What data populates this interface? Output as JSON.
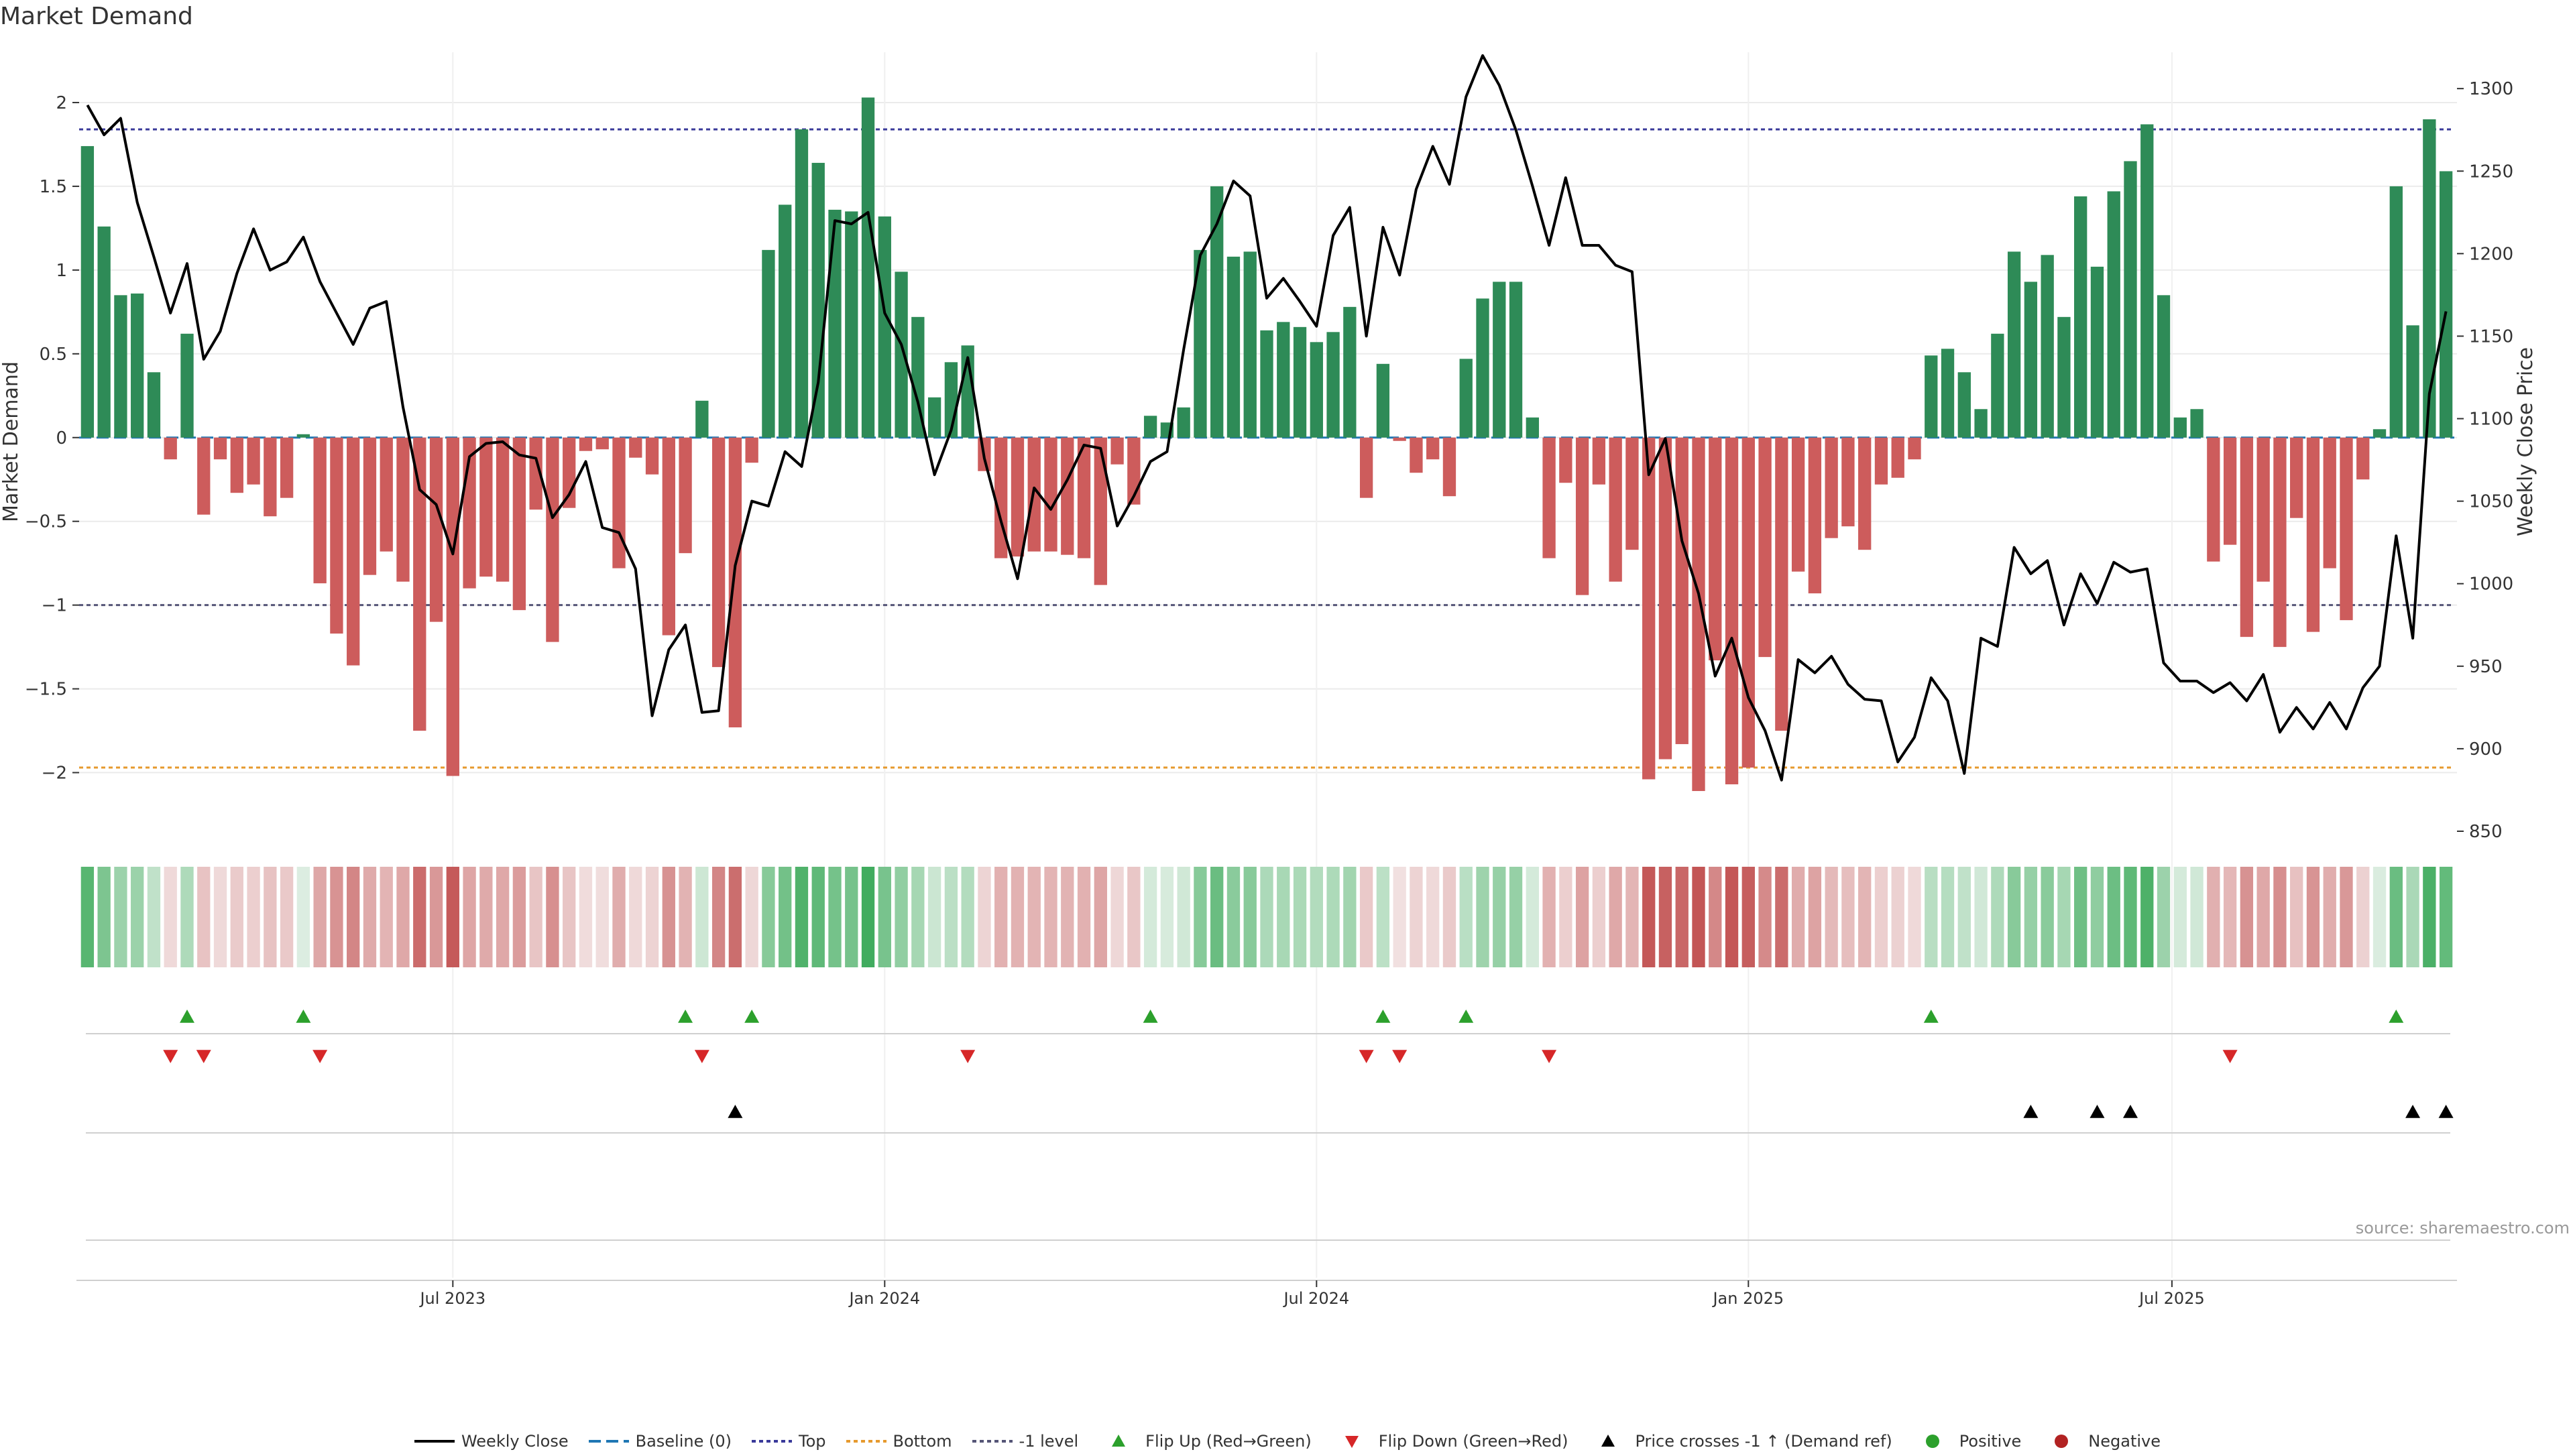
{
  "page": {
    "title": "Market Demand",
    "source": "source: sharemaestro.com"
  },
  "colors": {
    "positive": "#2e8b57",
    "negative": "#cd5c5c",
    "price": "#000000",
    "baseline": "#1f77b4",
    "top": "#3a3a9a",
    "bottom": "#e69a2e",
    "minus1": "#555577",
    "flip_up": "#2ca02c",
    "flip_down": "#d62728",
    "cross": "#000000",
    "pos_dot": "#2ca02c",
    "neg_dot": "#b22222"
  },
  "chart_data": {
    "type": "bar",
    "title": "Market Demand",
    "x_labels": [
      "Jul 2023",
      "Jan 2024",
      "Jul 2024",
      "Jan 2025",
      "Jul 2025"
    ],
    "x_label_weeks": [
      22,
      48,
      74,
      100,
      125.5
    ],
    "y_left": {
      "label": "Market Demand",
      "range": [
        -2.35,
        2.3
      ],
      "ticks": [
        -2,
        -1.5,
        -1,
        -0.5,
        0,
        0.5,
        1,
        1.5,
        2
      ]
    },
    "y_right": {
      "label": "Weekly Close Price",
      "range": [
        850,
        1322
      ],
      "ticks": [
        850,
        900,
        950,
        1000,
        1050,
        1100,
        1150,
        1200,
        1250,
        1300
      ]
    },
    "levels": {
      "baseline": 0,
      "top": 1.84,
      "bottom": -1.97,
      "minus_one": -1
    },
    "demand": [
      1.74,
      1.26,
      0.85,
      0.86,
      0.39,
      -0.13,
      0.62,
      -0.46,
      -0.13,
      -0.33,
      -0.28,
      -0.47,
      -0.36,
      0.02,
      -0.87,
      -1.17,
      -1.36,
      -0.82,
      -0.68,
      -0.86,
      -1.75,
      -1.1,
      -2.02,
      -0.9,
      -0.83,
      -0.86,
      -1.03,
      -0.43,
      -1.22,
      -0.42,
      -0.08,
      -0.07,
      -0.78,
      -0.12,
      -0.22,
      -1.18,
      -0.69,
      0.22,
      -1.37,
      -1.73,
      -0.15,
      1.12,
      1.39,
      1.84,
      1.64,
      1.36,
      1.35,
      2.03,
      1.32,
      0.99,
      0.72,
      0.24,
      0.45,
      0.55,
      -0.2,
      -0.72,
      -0.71,
      -0.68,
      -0.68,
      -0.7,
      -0.72,
      -0.88,
      -0.16,
      -0.4,
      0.13,
      0.09,
      0.18,
      1.12,
      1.5,
      1.08,
      1.11,
      0.64,
      0.69,
      0.66,
      0.57,
      0.63,
      0.78,
      -0.36,
      0.44,
      -0.02,
      -0.21,
      -0.13,
      -0.35,
      0.47,
      0.83,
      0.93,
      0.93,
      0.12,
      -0.72,
      -0.27,
      -0.94,
      -0.28,
      -0.86,
      -0.67,
      -2.04,
      -1.92,
      -1.83,
      -2.11,
      -1.33,
      -2.07,
      -1.97,
      -1.31,
      -1.75,
      -0.8,
      -0.93,
      -0.6,
      -0.53,
      -0.67,
      -0.28,
      -0.24,
      -0.13,
      0.49,
      0.53,
      0.39,
      0.17,
      0.62,
      1.11,
      0.93,
      1.09,
      0.72,
      1.44,
      1.02,
      1.47,
      1.65,
      1.87,
      0.85,
      0.12,
      0.17,
      -0.74,
      -0.64,
      -1.19,
      -0.86,
      -1.25,
      -0.48,
      -1.16,
      -0.78,
      -1.09,
      -0.25,
      0.05,
      1.5,
      0.67,
      1.9,
      1.59
    ],
    "close": [
      1290,
      1272,
      1282,
      1231,
      1198,
      1164,
      1194,
      1136,
      1153,
      1188,
      1215,
      1190,
      1195,
      1210,
      1183,
      1164,
      1145,
      1167,
      1171,
      1107,
      1057,
      1048,
      1018,
      1077,
      1085,
      1086,
      1078,
      1076,
      1040,
      1054,
      1074,
      1034,
      1031,
      1009,
      920,
      960,
      975,
      922,
      923,
      1011,
      1050,
      1047,
      1080,
      1071,
      1122,
      1220,
      1218,
      1225,
      1164,
      1145,
      1110,
      1066,
      1093,
      1137,
      1076,
      1038,
      1003,
      1058,
      1045,
      1063,
      1084,
      1082,
      1035,
      1053,
      1074,
      1080,
      1142,
      1199,
      1218,
      1244,
      1235,
      1173,
      1185,
      1171,
      1156,
      1211,
      1228,
      1150,
      1216,
      1187,
      1239,
      1265,
      1242,
      1295,
      1320,
      1302,
      1275,
      1241,
      1205,
      1246,
      1205,
      1205,
      1193,
      1189,
      1066,
      1088,
      1026,
      994,
      944,
      967,
      931,
      911,
      881,
      954,
      946,
      956,
      939,
      930,
      929,
      892,
      907,
      943,
      929,
      885,
      967,
      962,
      1022,
      1006,
      1014,
      975,
      1006,
      988,
      1013,
      1007,
      1009,
      952,
      941,
      941,
      934,
      940,
      929,
      945,
      910,
      925,
      912,
      928,
      912,
      937,
      950,
      1029,
      967,
      1115,
      1165
    ],
    "flip_up": [
      6,
      13,
      36,
      40,
      64,
      78,
      83,
      111,
      139
    ],
    "flip_down": [
      5,
      7,
      14,
      37,
      53,
      77,
      79,
      88,
      129
    ],
    "price_cross_up": [
      39,
      117,
      121,
      123,
      140,
      142
    ],
    "legend": [
      {
        "key": "weekly_close",
        "label": "Weekly Close"
      },
      {
        "key": "baseline",
        "label": "Baseline (0)"
      },
      {
        "key": "top",
        "label": "Top"
      },
      {
        "key": "bottom",
        "label": "Bottom"
      },
      {
        "key": "minus1",
        "label": "-1 level"
      },
      {
        "key": "flip_up",
        "label": "Flip Up (Red→Green)"
      },
      {
        "key": "flip_down",
        "label": "Flip Down (Green→Red)"
      },
      {
        "key": "cross",
        "label": "Price crosses -1 ↑ (Demand ref)"
      },
      {
        "key": "positive",
        "label": "Positive"
      },
      {
        "key": "negative",
        "label": "Negative"
      }
    ],
    "legend_placement": "bottom-center",
    "grid": true
  }
}
